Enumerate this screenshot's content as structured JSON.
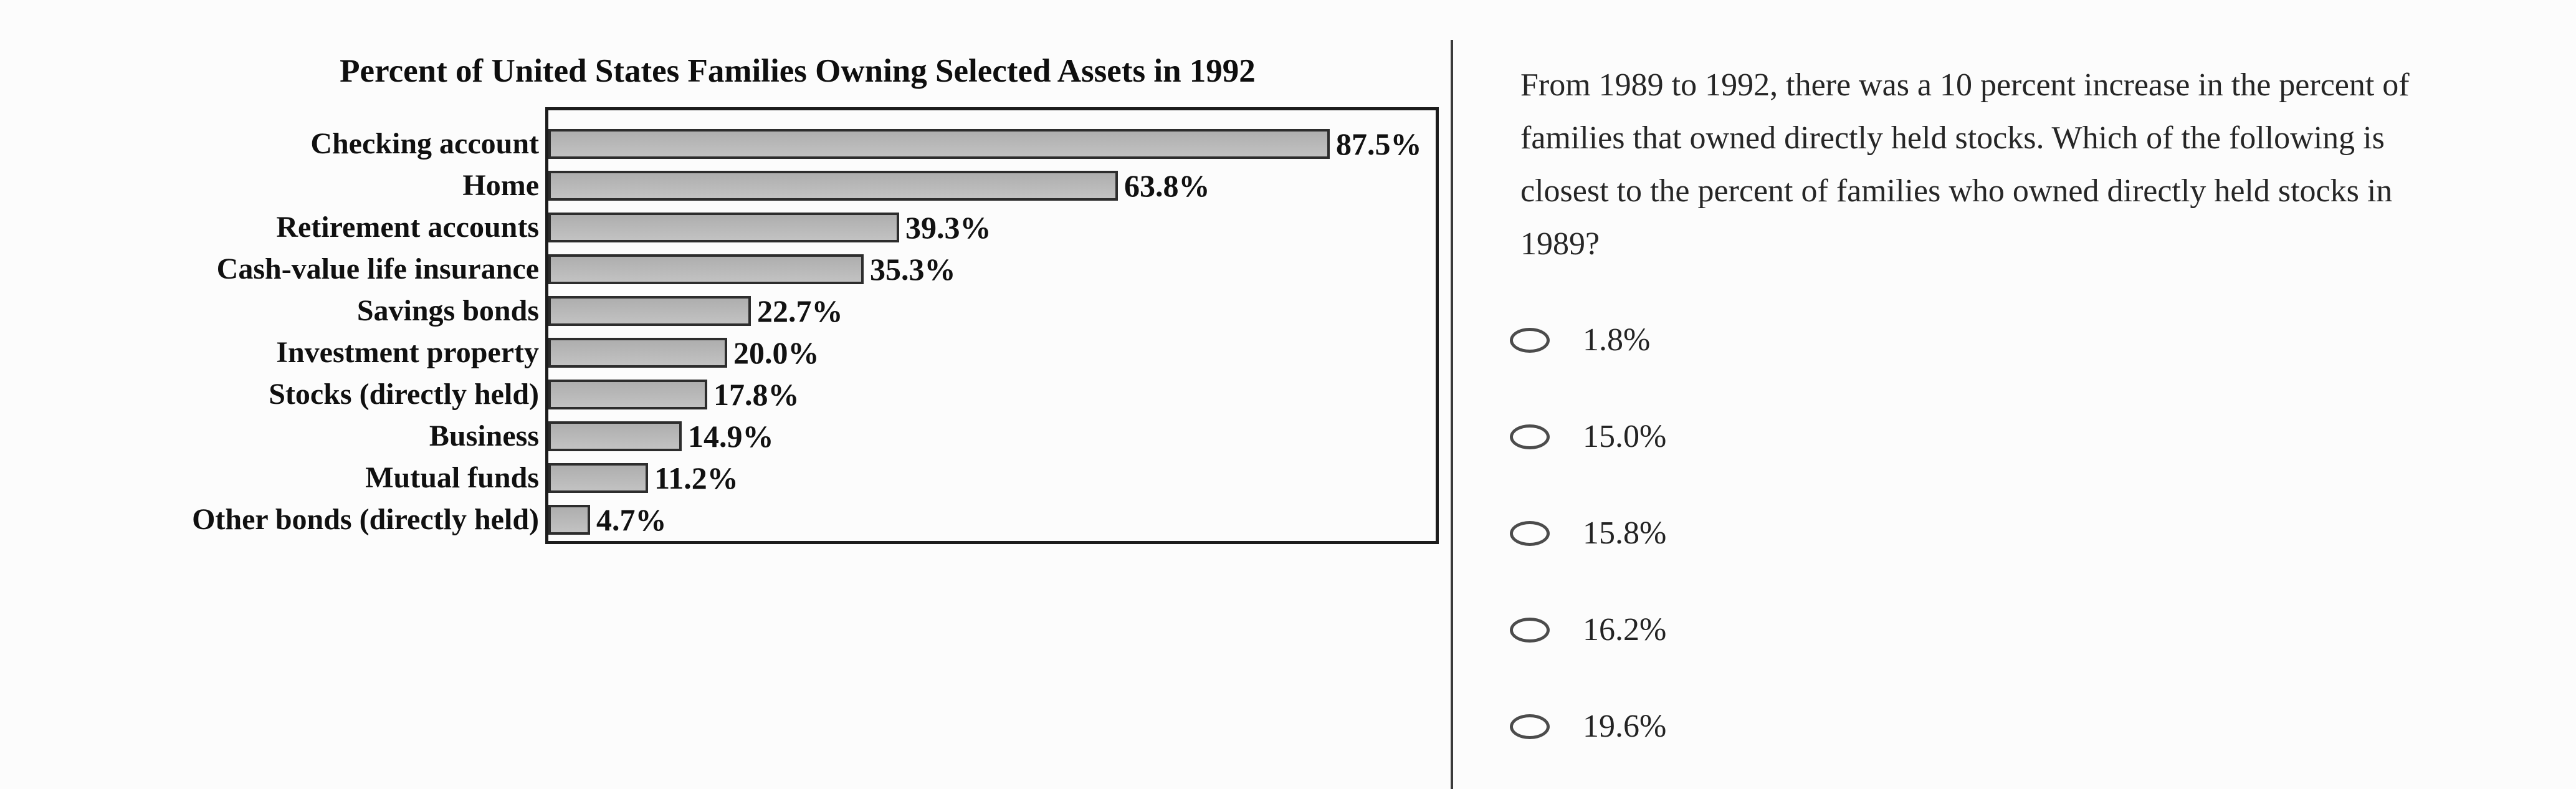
{
  "chart": {
    "bar_fill": "#b5b5b5",
    "bar_border": "#2d2d2d",
    "box_border": "#1c1c1c"
  },
  "chart_data": {
    "type": "bar",
    "orientation": "horizontal",
    "title": "Percent of United States Families Owning Selected Assets in 1992",
    "categories": [
      "Checking account",
      "Home",
      "Retirement accounts",
      "Cash-value life insurance",
      "Savings bonds",
      "Investment property",
      "Stocks (directly held)",
      "Business",
      "Mutual funds",
      "Other bonds (directly held)"
    ],
    "values": [
      87.5,
      63.8,
      39.3,
      35.3,
      22.7,
      20.0,
      17.8,
      14.9,
      11.2,
      4.7
    ],
    "data_labels": [
      "87.5%",
      "63.8%",
      "39.3%",
      "35.3%",
      "22.7%",
      "20.0%",
      "17.8%",
      "14.9%",
      "11.2%",
      "4.7%"
    ],
    "xlim": [
      0,
      100
    ],
    "xlabel": "",
    "ylabel": "",
    "grid": false,
    "legend": false,
    "bar_label_position": "end-of-bar"
  },
  "question": {
    "text": "From 1989 to 1992, there was a 10 percent increase in the percent of families that owned directly held stocks. Which of the following is closest to the percent of families who owned directly held stocks in 1989?",
    "options": [
      "1.8%",
      "15.0%",
      "15.8%",
      "16.2%",
      "19.6%"
    ]
  }
}
